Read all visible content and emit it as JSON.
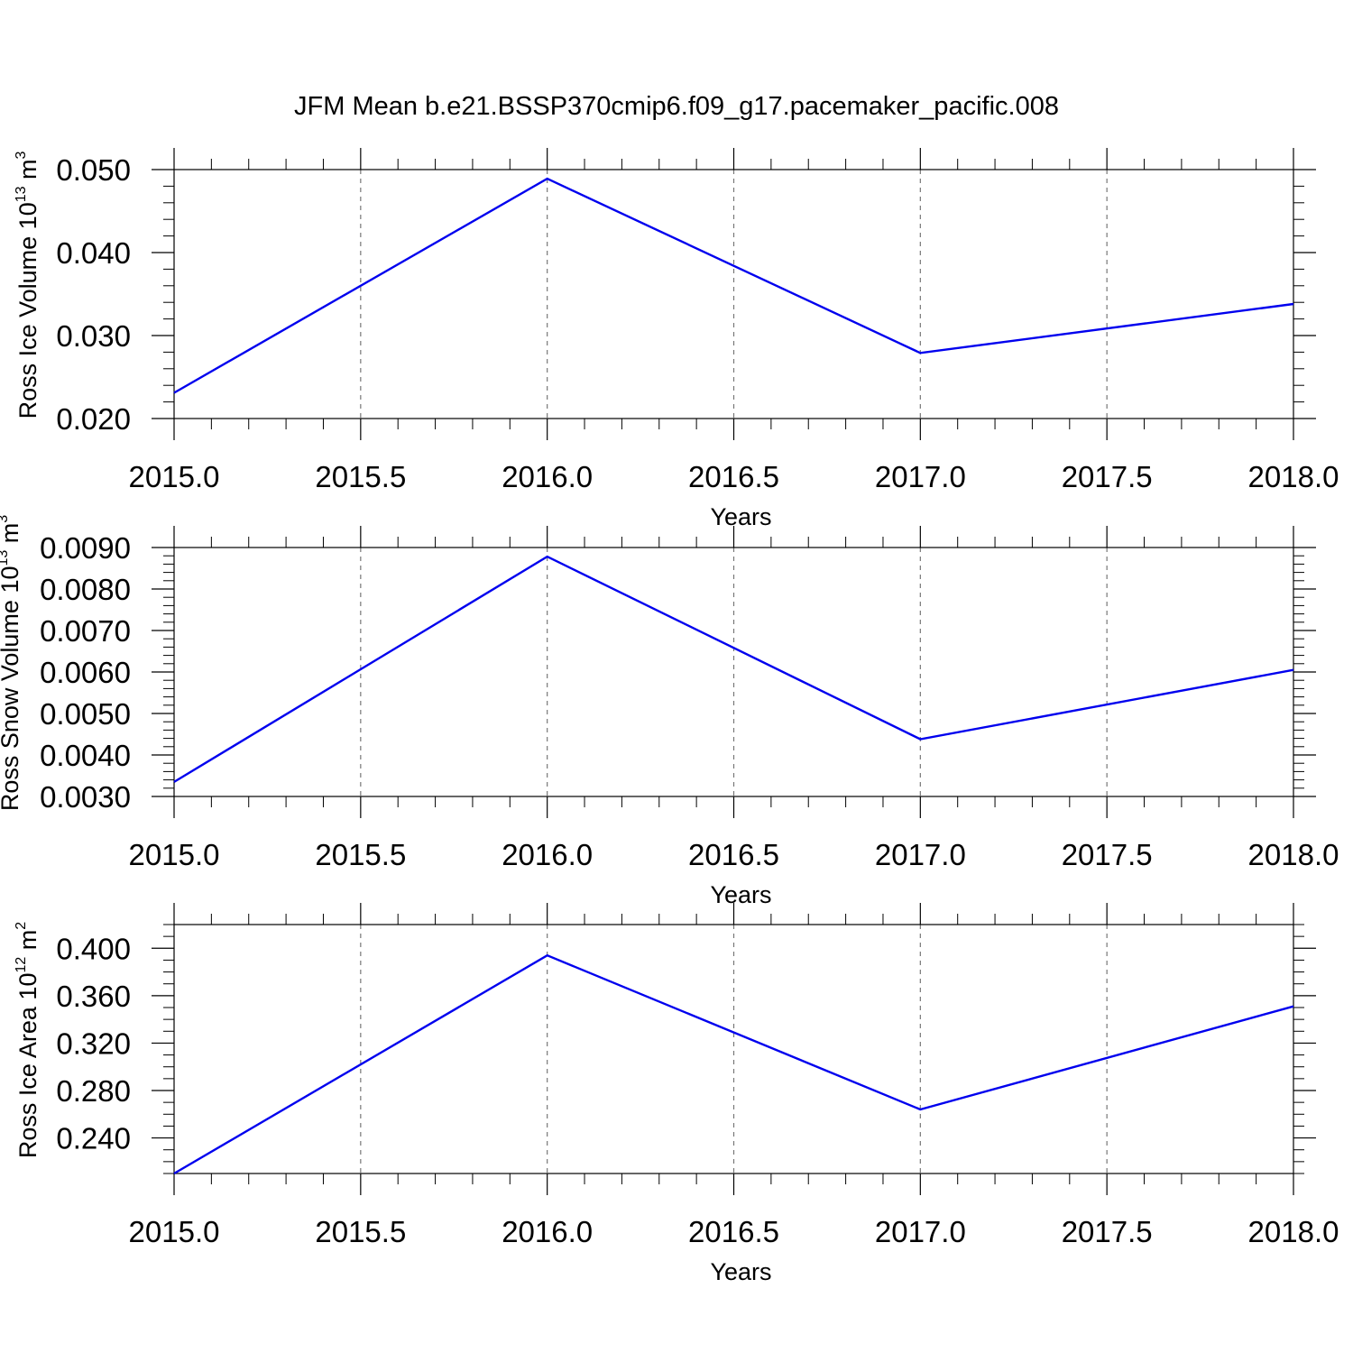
{
  "title": "JFM Mean b.e21.BSSP370cmip6.f09_g17.pacemaker_pacific.008",
  "colors": {
    "line": "#0000ee",
    "axis": "#000000",
    "grid": "#777777"
  },
  "chart_data": [
    {
      "type": "line",
      "x": [
        2015.0,
        2016.0,
        2017.0,
        2018.0
      ],
      "series": [
        {
          "values": [
            0.0231,
            0.0489,
            0.0279,
            0.0338
          ]
        }
      ],
      "xlabel": "Years",
      "ylabel": {
        "text": "Ross Ice Volume 10",
        "sup": "13",
        "unit": " m",
        "unit_sup": "3"
      },
      "xlim": [
        2015.0,
        2018.0
      ],
      "ylim": [
        0.02,
        0.05
      ],
      "xticks": [
        "2015.0",
        "2015.5",
        "2016.0",
        "2016.5",
        "2017.0",
        "2017.5",
        "2018.0"
      ],
      "yticks": [
        "0.020",
        "0.030",
        "0.040",
        "0.050"
      ],
      "grid": "vertical-dashed"
    },
    {
      "type": "line",
      "x": [
        2015.0,
        2016.0,
        2017.0,
        2018.0
      ],
      "series": [
        {
          "values": [
            0.00335,
            0.00878,
            0.00438,
            0.00605
          ]
        }
      ],
      "xlabel": "Years",
      "ylabel": {
        "text": "Ross Snow Volume 10",
        "sup": "13",
        "unit": " m",
        "unit_sup": "3"
      },
      "xlim": [
        2015.0,
        2018.0
      ],
      "ylim": [
        0.003,
        0.009
      ],
      "xticks": [
        "2015.0",
        "2015.5",
        "2016.0",
        "2016.5",
        "2017.0",
        "2017.5",
        "2018.0"
      ],
      "yticks": [
        "0.0030",
        "0.0040",
        "0.0050",
        "0.0060",
        "0.0070",
        "0.0080",
        "0.0090"
      ],
      "grid": "vertical-dashed"
    },
    {
      "type": "line",
      "x": [
        2015.0,
        2016.0,
        2017.0,
        2018.0
      ],
      "series": [
        {
          "values": [
            0.21,
            0.394,
            0.264,
            0.351
          ]
        }
      ],
      "xlabel": "Years",
      "ylabel": {
        "text": "Ross Ice Area 10",
        "sup": "12",
        "unit": " m",
        "unit_sup": "2"
      },
      "xlim": [
        2015.0,
        2018.0
      ],
      "ylim": [
        0.21,
        0.42
      ],
      "xticks": [
        "2015.0",
        "2015.5",
        "2016.0",
        "2016.5",
        "2017.0",
        "2017.5",
        "2018.0"
      ],
      "yticks": [
        "0.240",
        "0.280",
        "0.320",
        "0.360",
        "0.400"
      ],
      "grid": "vertical-dashed"
    }
  ]
}
